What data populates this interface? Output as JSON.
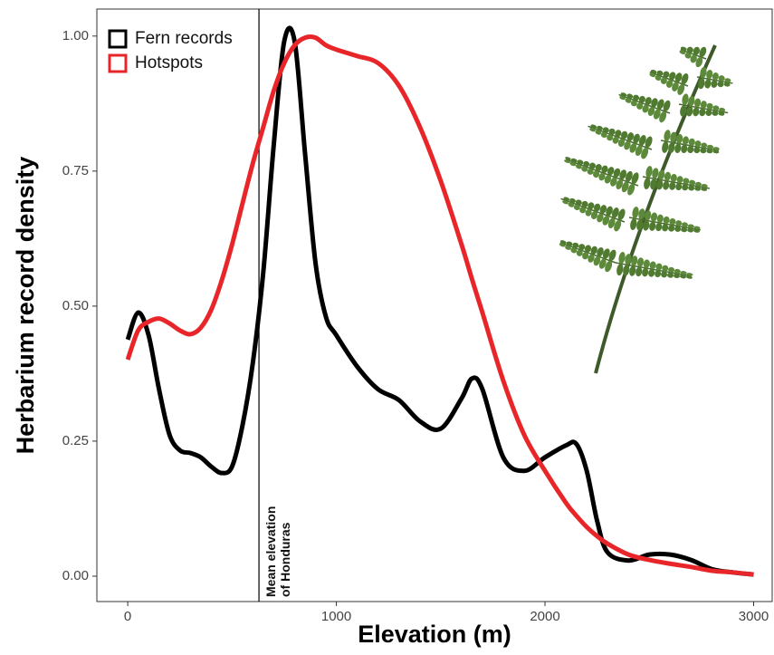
{
  "chart_data": {
    "type": "line",
    "x_label": "Elevation (m)",
    "y_label": "Herbarium record density",
    "x": [
      0,
      50,
      100,
      150,
      200,
      250,
      300,
      350,
      400,
      450,
      500,
      550,
      600,
      650,
      700,
      750,
      800,
      850,
      900,
      950,
      1000,
      1100,
      1200,
      1300,
      1400,
      1500,
      1600,
      1650,
      1700,
      1800,
      1900,
      2000,
      2100,
      2150,
      2200,
      2250,
      2300,
      2400,
      2500,
      2600,
      2700,
      2800,
      2900,
      3000
    ],
    "series": [
      {
        "name": "Fern records",
        "color": "#000000",
        "values": [
          0.438,
          0.488,
          0.446,
          0.346,
          0.262,
          0.233,
          0.228,
          0.22,
          0.203,
          0.191,
          0.203,
          0.279,
          0.396,
          0.564,
          0.799,
          0.99,
          0.99,
          0.782,
          0.58,
          0.48,
          0.446,
          0.388,
          0.346,
          0.326,
          0.287,
          0.273,
          0.329,
          0.366,
          0.346,
          0.22,
          0.195,
          0.22,
          0.242,
          0.245,
          0.195,
          0.102,
          0.044,
          0.029,
          0.04,
          0.04,
          0.03,
          0.013,
          0.007,
          0.003
        ]
      },
      {
        "name": "Hotspots",
        "color": "#e8262a",
        "values": [
          0.401,
          0.455,
          0.471,
          0.477,
          0.468,
          0.455,
          0.448,
          0.46,
          0.493,
          0.547,
          0.614,
          0.69,
          0.765,
          0.832,
          0.899,
          0.95,
          0.983,
          0.997,
          0.997,
          0.983,
          0.975,
          0.963,
          0.95,
          0.908,
          0.832,
          0.732,
          0.614,
          0.55,
          0.488,
          0.362,
          0.262,
          0.195,
          0.136,
          0.112,
          0.091,
          0.074,
          0.06,
          0.04,
          0.03,
          0.023,
          0.017,
          0.01,
          0.007,
          0.003
        ]
      }
    ],
    "xlim": [
      -148,
      3089
    ],
    "ylim": [
      -0.047,
      1.05
    ],
    "xticks": [
      0,
      1000,
      2000,
      3000
    ],
    "yticks": [
      {
        "value": 0,
        "label": "0.00"
      },
      {
        "value": 0.25,
        "label": "0.25"
      },
      {
        "value": 0.5,
        "label": "0.50"
      },
      {
        "value": 0.75,
        "label": "0.75"
      },
      {
        "value": 1,
        "label": "1.00"
      }
    ],
    "grid": false,
    "legend": "top-left",
    "annotation": {
      "lines": [
        "Mean elevation",
        "of Honduras"
      ],
      "x": 629
    }
  }
}
